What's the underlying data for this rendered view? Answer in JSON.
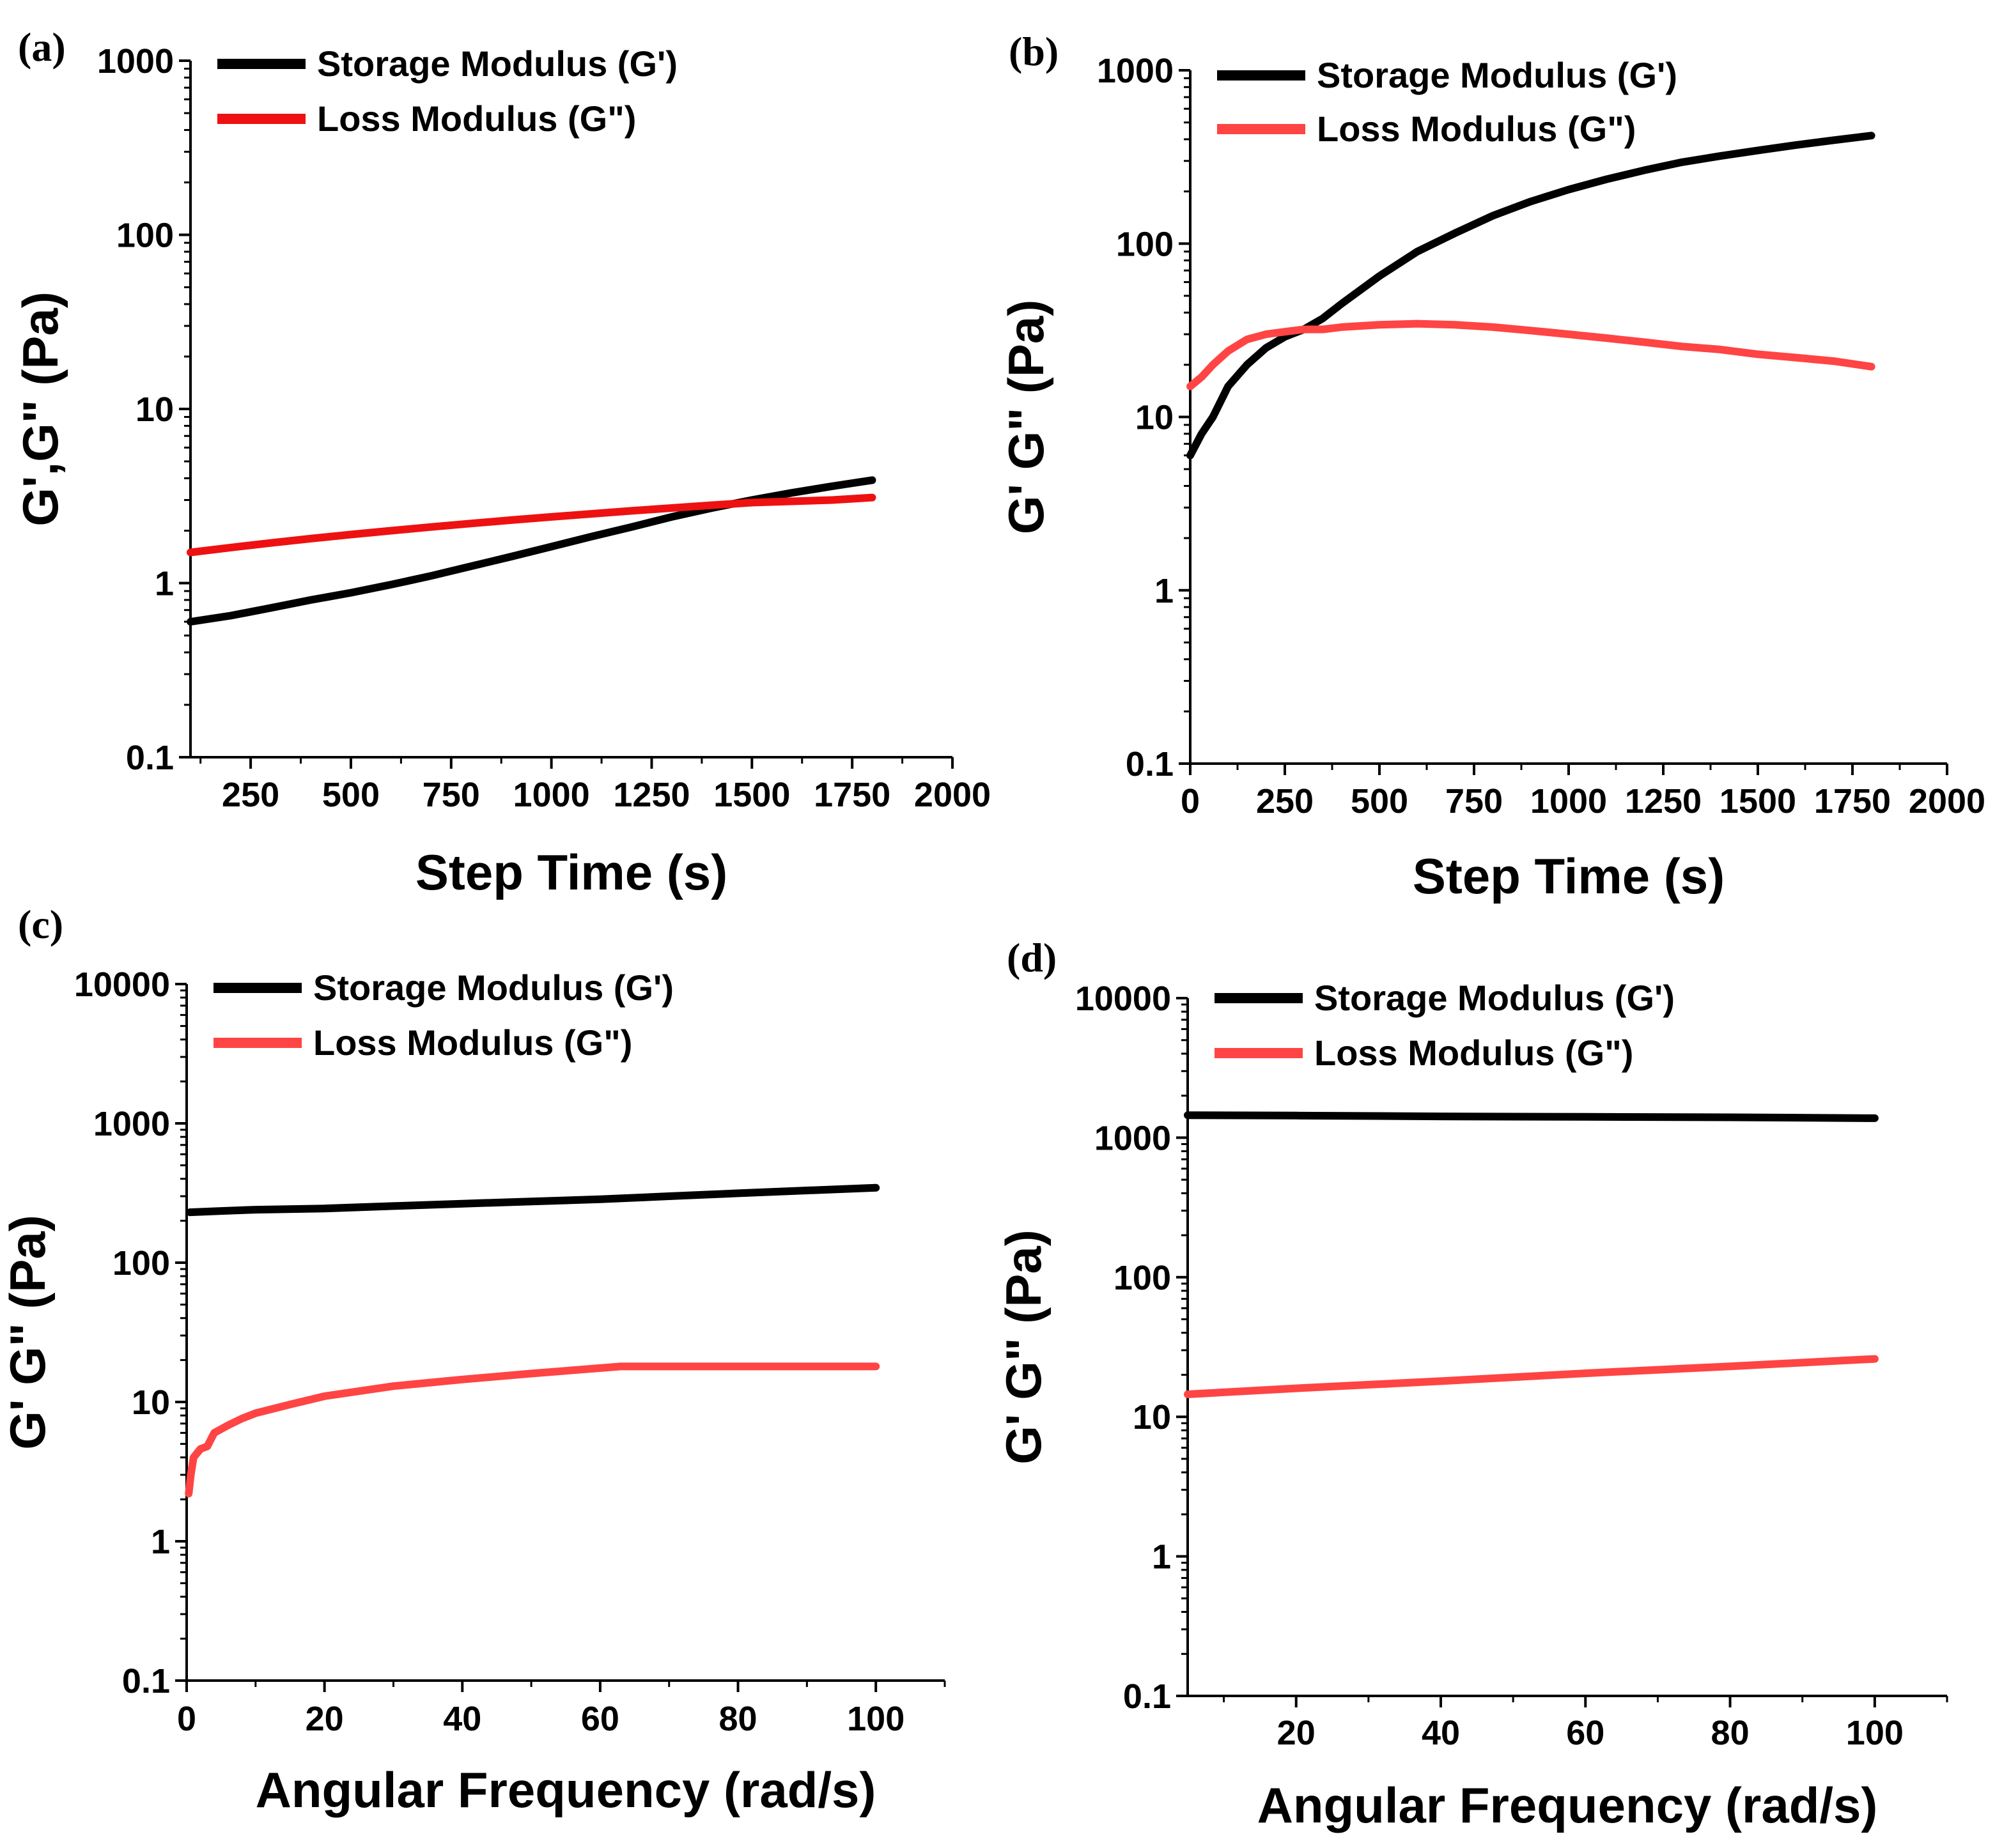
{
  "chart_data": [
    {
      "type": "line",
      "panel_label": "(a)",
      "xlabel": "Step Time (s)",
      "ylabel": "G',G\" (Pa)",
      "x_scale": "linear",
      "y_scale": "log",
      "xlim": [
        100,
        2000
      ],
      "ylim": [
        0.1,
        1000
      ],
      "x_ticks": [
        250,
        500,
        750,
        1000,
        1250,
        1500,
        1750,
        2000
      ],
      "y_ticks": [
        0.1,
        1,
        10,
        100,
        1000
      ],
      "y_tick_labels": [
        "0.1",
        "1",
        "10",
        "100",
        "1000"
      ],
      "legend_position": "top-left",
      "series": [
        {
          "name": "Storage Modulus (G')",
          "color": "#000000",
          "x": [
            100,
            200,
            300,
            400,
            500,
            600,
            700,
            800,
            900,
            1000,
            1100,
            1200,
            1300,
            1400,
            1500,
            1600,
            1700,
            1800
          ],
          "values": [
            0.6,
            0.65,
            0.72,
            0.8,
            0.88,
            0.98,
            1.1,
            1.25,
            1.42,
            1.62,
            1.85,
            2.1,
            2.4,
            2.7,
            3.0,
            3.3,
            3.6,
            3.9
          ]
        },
        {
          "name": "Loss Modulus (G\")",
          "color": "#ee1111",
          "x": [
            100,
            200,
            300,
            400,
            500,
            600,
            700,
            800,
            900,
            1000,
            1100,
            1200,
            1300,
            1400,
            1500,
            1600,
            1700,
            1800
          ],
          "values": [
            1.5,
            1.6,
            1.7,
            1.8,
            1.9,
            2.0,
            2.1,
            2.2,
            2.3,
            2.4,
            2.5,
            2.6,
            2.7,
            2.8,
            2.9,
            2.95,
            3.0,
            3.1
          ]
        }
      ]
    },
    {
      "type": "line",
      "panel_label": "(b)",
      "xlabel": "Step Time (s)",
      "ylabel": "G' G\" (Pa)",
      "x_scale": "linear",
      "y_scale": "log",
      "xlim": [
        0,
        2000
      ],
      "ylim": [
        0.1,
        1000
      ],
      "x_ticks": [
        0,
        250,
        500,
        750,
        1000,
        1250,
        1500,
        1750,
        2000
      ],
      "y_ticks": [
        0.1,
        1,
        10,
        100,
        1000
      ],
      "y_tick_labels": [
        "0.1",
        "1",
        "10",
        "100",
        "1000"
      ],
      "legend_position": "top-left",
      "series": [
        {
          "name": "Storage Modulus (G')",
          "color": "#000000",
          "x": [
            0,
            30,
            60,
            100,
            150,
            200,
            250,
            300,
            350,
            400,
            500,
            600,
            700,
            800,
            900,
            1000,
            1100,
            1200,
            1300,
            1400,
            1500,
            1600,
            1700,
            1800
          ],
          "values": [
            6,
            8,
            10,
            15,
            20,
            25,
            29,
            32,
            37,
            45,
            65,
            90,
            115,
            145,
            175,
            205,
            235,
            265,
            295,
            320,
            345,
            370,
            395,
            420
          ]
        },
        {
          "name": "Loss Modulus (G\")",
          "color": "#ff4444",
          "x": [
            0,
            30,
            60,
            100,
            150,
            200,
            250,
            300,
            350,
            400,
            500,
            600,
            700,
            800,
            900,
            1000,
            1100,
            1200,
            1300,
            1400,
            1500,
            1600,
            1700,
            1800
          ],
          "values": [
            15,
            17,
            20,
            24,
            28,
            30,
            31,
            32,
            32,
            33,
            34,
            34.5,
            34,
            33,
            31.5,
            30,
            28.5,
            27,
            25.5,
            24.5,
            23,
            22,
            21,
            19.5
          ]
        }
      ]
    },
    {
      "type": "line",
      "panel_label": "(c)",
      "xlabel": "Angular Frequency (rad/s)",
      "ylabel": "G' G\" (Pa)",
      "x_scale": "linear",
      "y_scale": "log",
      "xlim": [
        0,
        110
      ],
      "ylim": [
        0.1,
        10000
      ],
      "x_ticks": [
        0,
        20,
        40,
        60,
        80,
        100
      ],
      "y_ticks": [
        0.1,
        1,
        10,
        100,
        1000,
        10000
      ],
      "y_tick_labels": [
        "0.1",
        "1",
        "10",
        "100",
        "1000",
        "10000"
      ],
      "legend_position": "top-left",
      "series": [
        {
          "name": "Storage Modulus (G')",
          "color": "#000000",
          "x": [
            0.5,
            5,
            10,
            20,
            30,
            40,
            50,
            60,
            70,
            80,
            90,
            100
          ],
          "values": [
            230,
            235,
            240,
            245,
            255,
            265,
            275,
            285,
            300,
            315,
            330,
            345
          ]
        },
        {
          "name": "Loss Modulus (G\")",
          "color": "#ff4444",
          "x": [
            0.3,
            0.6,
            1,
            2,
            3,
            4,
            6,
            8,
            10,
            15,
            20,
            30,
            40,
            50,
            63,
            70,
            80,
            90,
            100
          ],
          "values": [
            2.2,
            3,
            4,
            4.6,
            4.8,
            6,
            6.8,
            7.6,
            8.3,
            9.6,
            11,
            13,
            14.5,
            16,
            18,
            18,
            18,
            18,
            18
          ]
        }
      ]
    },
    {
      "type": "line",
      "panel_label": "(d)",
      "xlabel": "Angular Frequency (rad/s)",
      "ylabel": "G' G\" (Pa)",
      "x_scale": "linear",
      "y_scale": "log",
      "xlim": [
        5,
        110
      ],
      "ylim": [
        0.1,
        10000
      ],
      "x_ticks": [
        20,
        40,
        60,
        80,
        100
      ],
      "y_ticks": [
        0.1,
        1,
        10,
        100,
        1000,
        10000
      ],
      "y_tick_labels": [
        "0.1",
        "1",
        "10",
        "100",
        "1000",
        "10000"
      ],
      "legend_position": "top-left",
      "series": [
        {
          "name": "Storage Modulus (G')",
          "color": "#000000",
          "x": [
            5,
            20,
            40,
            60,
            80,
            100
          ],
          "values": [
            1450,
            1440,
            1420,
            1410,
            1400,
            1380
          ]
        },
        {
          "name": "Loss Modulus (G\")",
          "color": "#ff4444",
          "x": [
            5,
            20,
            40,
            60,
            80,
            100
          ],
          "values": [
            14.5,
            16,
            18,
            20.5,
            23,
            26
          ]
        }
      ]
    }
  ]
}
